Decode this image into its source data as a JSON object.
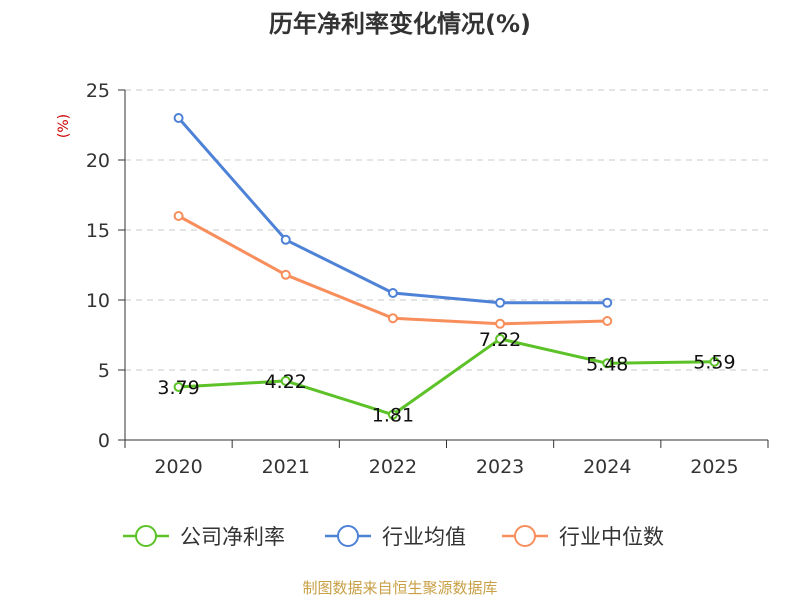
{
  "chart_data": {
    "type": "line",
    "title": "历年净利率变化情况(%)",
    "y_unit": "(%)",
    "categories": [
      "2020",
      "2021",
      "2022",
      "2023",
      "2024",
      "2025"
    ],
    "ylim": [
      0,
      25
    ],
    "yticks": [
      0,
      5,
      10,
      15,
      20,
      25
    ],
    "grid": true,
    "legend_position": "bottom",
    "series": [
      {
        "name": "公司净利率",
        "color": "#5cc228",
        "values": [
          3.79,
          4.22,
          1.81,
          7.22,
          5.48,
          5.59
        ],
        "labels": [
          "3.79",
          "4.22",
          "1.81",
          "7.22",
          "5.48",
          "5.59"
        ]
      },
      {
        "name": "行业均值",
        "color": "#4e82d6",
        "values": [
          23.0,
          14.3,
          10.5,
          9.8,
          9.8,
          null
        ]
      },
      {
        "name": "行业中位数",
        "color": "#f88e5c",
        "values": [
          16.0,
          11.8,
          8.7,
          8.3,
          8.5,
          null
        ]
      }
    ]
  },
  "source": "制图数据来自恒生聚源数据库"
}
